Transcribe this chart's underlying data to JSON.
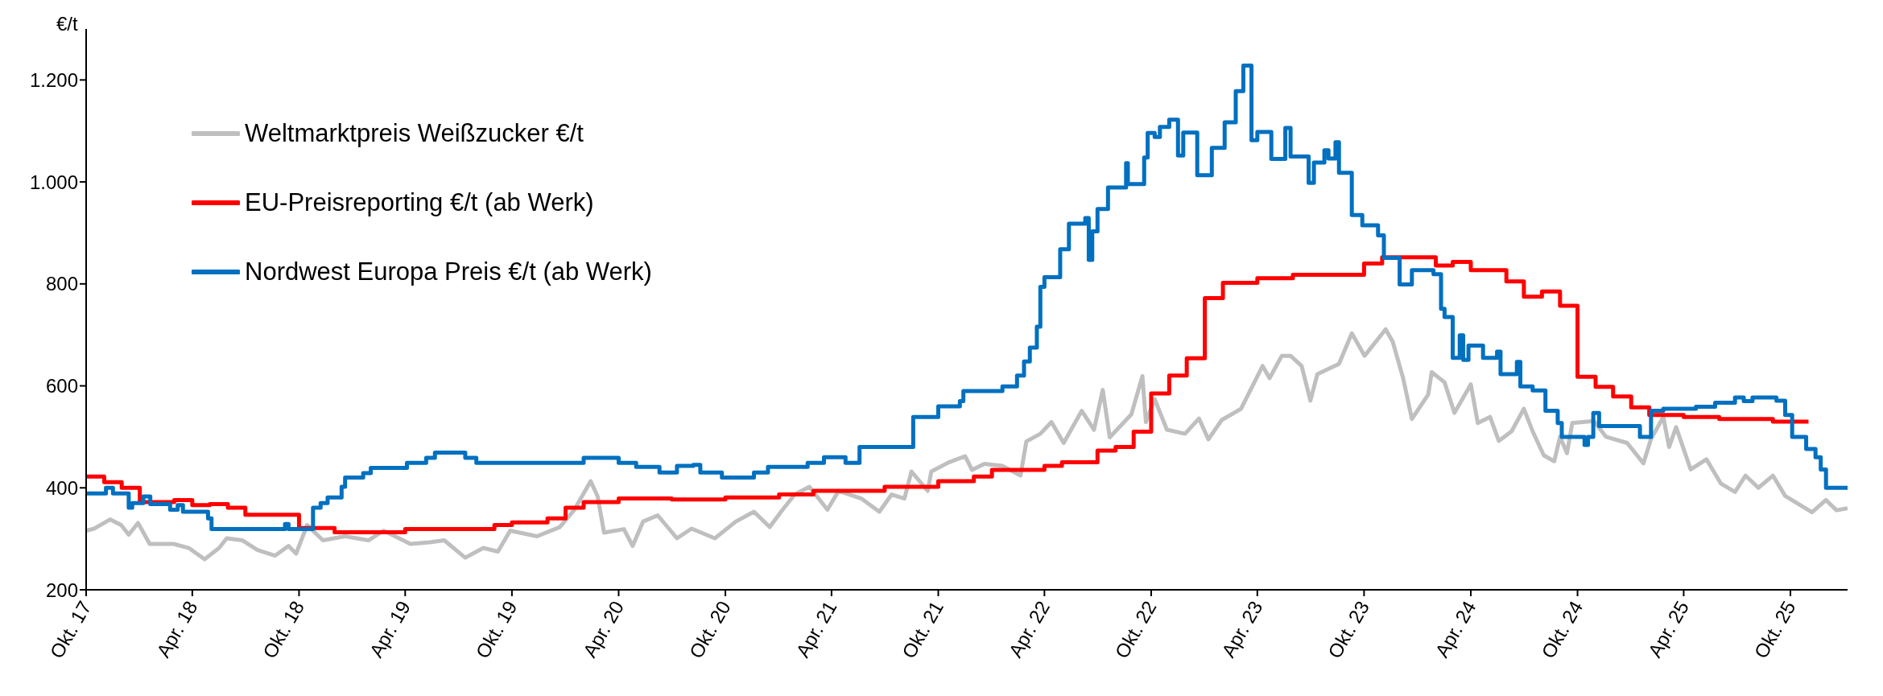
{
  "chart_data": {
    "type": "line",
    "ylabel": "€/t",
    "legend": "top left",
    "grid": false,
    "marker": "none",
    "line_style": "solid",
    "xlim": [
      "2017-10-01",
      "2026-01-07"
    ],
    "xticks": [
      {
        "value": "2017-10-01",
        "label": "Okt. 17"
      },
      {
        "value": "2018-04-01",
        "label": "Apr. 18"
      },
      {
        "value": "2018-10-01",
        "label": "Okt. 18"
      },
      {
        "value": "2019-04-01",
        "label": "Apr. 19"
      },
      {
        "value": "2019-10-01",
        "label": "Okt. 19"
      },
      {
        "value": "2020-04-01",
        "label": "Apr. 20"
      },
      {
        "value": "2020-10-01",
        "label": "Okt. 20"
      },
      {
        "value": "2021-04-01",
        "label": "Apr. 21"
      },
      {
        "value": "2021-10-01",
        "label": "Okt. 21"
      },
      {
        "value": "2022-04-01",
        "label": "Apr. 22"
      },
      {
        "value": "2022-10-01",
        "label": "Okt. 22"
      },
      {
        "value": "2023-04-01",
        "label": "Apr. 23"
      },
      {
        "value": "2023-10-01",
        "label": "Okt. 23"
      },
      {
        "value": "2024-04-01",
        "label": "Apr. 24"
      },
      {
        "value": "2024-10-01",
        "label": "Okt. 24"
      },
      {
        "value": "2025-04-01",
        "label": "Apr. 25"
      },
      {
        "value": "2025-10-01",
        "label": "Okt. 25"
      }
    ],
    "ylim": [
      200,
      1300
    ],
    "yticks": [
      200,
      400,
      600,
      800,
      {
        "value": 1000,
        "label": "1.000"
      },
      {
        "value": 1200,
        "label": "1.200"
      }
    ],
    "series": [
      {
        "name": "Weltmarktpreis Weißzucker €/t",
        "color": "#bfbfbf",
        "type": "line",
        "x": [
          "2017-10-01",
          "2017-10-15",
          "2017-11-11",
          "2017-11-30",
          "2017-12-13",
          "2017-12-29",
          "2018-01-18",
          "2018-02-28",
          "2018-03-26",
          "2018-04-22",
          "2018-05-17",
          "2018-05-30",
          "2018-06-26",
          "2018-07-22",
          "2018-08-21",
          "2018-09-13",
          "2018-09-26",
          "2018-10-15",
          "2018-11-11",
          "2018-12-19",
          "2019-01-28",
          "2019-02-23",
          "2019-04-10",
          "2019-05-13",
          "2019-06-07",
          "2019-07-13",
          "2019-08-13",
          "2019-09-07",
          "2019-09-28",
          "2019-11-13",
          "2019-12-22",
          "2020-01-16",
          "2020-02-13",
          "2020-02-25",
          "2020-03-07",
          "2020-04-10",
          "2020-04-25",
          "2020-05-13",
          "2020-06-07",
          "2020-07-10",
          "2020-08-04",
          "2020-09-13",
          "2020-10-19",
          "2020-11-19",
          "2020-12-16",
          "2021-01-07",
          "2021-01-28",
          "2021-02-22",
          "2021-03-25",
          "2021-04-13",
          "2021-05-22",
          "2021-06-22",
          "2021-07-13",
          "2021-08-04",
          "2021-08-16",
          "2021-09-13",
          "2021-09-19",
          "2021-10-19",
          "2021-11-16",
          "2021-11-28",
          "2021-12-19",
          "2022-01-19",
          "2022-02-19",
          "2022-03-01",
          "2022-03-25",
          "2022-04-13",
          "2022-05-04",
          "2022-06-04",
          "2022-06-25",
          "2022-07-10",
          "2022-07-22",
          "2022-08-28",
          "2022-09-16",
          "2022-09-22",
          "2022-10-07",
          "2022-10-28",
          "2022-11-28",
          "2022-12-22",
          "2023-01-07",
          "2023-01-30",
          "2023-03-04",
          "2023-04-10",
          "2023-04-22",
          "2023-05-13",
          "2023-05-28",
          "2023-06-16",
          "2023-07-01",
          "2023-07-13",
          "2023-08-19",
          "2023-09-10",
          "2023-10-02",
          "2023-11-07",
          "2023-11-19",
          "2023-12-07",
          "2023-12-22",
          "2024-01-19",
          "2024-01-25",
          "2024-02-16",
          "2024-03-04",
          "2024-04-01",
          "2024-04-13",
          "2024-05-04",
          "2024-05-19",
          "2024-06-10",
          "2024-07-01",
          "2024-07-16",
          "2024-08-04",
          "2024-08-22",
          "2024-09-01",
          "2024-09-13",
          "2024-09-22",
          "2024-10-29",
          "2024-11-19",
          "2024-12-25",
          "2025-01-22",
          "2025-02-04",
          "2025-02-25",
          "2025-03-07",
          "2025-03-19",
          "2025-04-13",
          "2025-05-10",
          "2025-06-04",
          "2025-06-28",
          "2025-07-16",
          "2025-08-07",
          "2025-09-01",
          "2025-09-22",
          "2025-11-07",
          "2025-12-01",
          "2025-12-19",
          "2026-01-07"
        ],
        "values": [
          316,
          320,
          338,
          327,
          308,
          331,
          290,
          290,
          282,
          260,
          282,
          301,
          297,
          278,
          267,
          286,
          271,
          327,
          297,
          305,
          297,
          316,
          290,
          293,
          297,
          263,
          282,
          275,
          316,
          305,
          323,
          357,
          413,
          383,
          312,
          319,
          286,
          334,
          346,
          301,
          320,
          301,
          334,
          353,
          323,
          357,
          387,
          402,
          357,
          394,
          379,
          353,
          387,
          379,
          432,
          394,
          432,
          450,
          462,
          435,
          447,
          443,
          424,
          491,
          506,
          529,
          488,
          551,
          514,
          592,
          499,
          544,
          619,
          529,
          574,
          514,
          506,
          536,
          495,
          533,
          555,
          639,
          615,
          659,
          659,
          639,
          571,
          623,
          643,
          703,
          659,
          711,
          687,
          615,
          535,
          583,
          627,
          607,
          547,
          603,
          527,
          539,
          492,
          511,
          555,
          511,
          464,
          452,
          500,
          468,
          527,
          531,
          500,
          488,
          448,
          496,
          539,
          480,
          519,
          436,
          456,
          408,
          392,
          424,
          400,
          424,
          384,
          352,
          376,
          356,
          360
        ]
      },
      {
        "name": "EU-Preisreporting €/t (ab Werk)",
        "color": "#ff0000",
        "type": "step",
        "x": [
          "2017-10-01",
          "2017-11-01",
          "2017-12-01",
          "2018-01-01",
          "2018-03-01",
          "2018-04-01",
          "2018-05-01",
          "2018-06-01",
          "2018-07-01",
          "2018-10-01",
          "2018-12-01",
          "2019-04-01",
          "2019-09-01",
          "2019-10-01",
          "2019-12-01",
          "2020-01-01",
          "2020-02-01",
          "2020-04-01",
          "2020-07-01",
          "2020-10-01",
          "2021-01-01",
          "2021-03-01",
          "2021-07-01",
          "2021-10-01",
          "2021-12-01",
          "2022-01-01",
          "2022-04-01",
          "2022-05-01",
          "2022-07-01",
          "2022-08-01",
          "2022-09-01",
          "2022-10-01",
          "2022-11-01",
          "2022-12-01",
          "2023-01-01",
          "2023-02-01",
          "2023-04-01",
          "2023-06-01",
          "2023-10-01",
          "2023-11-01",
          "2024-02-01",
          "2024-03-01",
          "2024-04-01",
          "2024-06-01",
          "2024-07-01",
          "2024-08-01",
          "2024-09-01",
          "2024-10-01",
          "2024-11-01",
          "2024-12-01",
          "2025-01-01",
          "2025-02-01",
          "2025-04-01",
          "2025-06-01",
          "2025-09-01",
          "2025-11-01"
        ],
        "values": [
          422,
          411,
          400,
          372,
          376,
          366,
          368,
          361,
          347,
          321,
          313,
          319,
          327,
          332,
          340,
          361,
          372,
          379,
          377,
          381,
          387,
          394,
          402,
          413,
          422,
          435,
          443,
          450,
          473,
          480,
          510,
          585,
          620,
          654,
          772,
          802,
          811,
          818,
          840,
          852,
          836,
          843,
          827,
          805,
          775,
          785,
          757,
          618,
          598,
          579,
          558,
          543,
          539,
          535,
          530,
          530
        ]
      },
      {
        "name": "Nordwest Europa Preis €/t (ab Werk)",
        "color": "#0070c0",
        "type": "step",
        "x": [
          "2017-10-01",
          "2017-11-04",
          "2017-11-16",
          "2017-12-13",
          "2017-12-19",
          "2018-01-07",
          "2018-01-19",
          "2018-02-22",
          "2018-03-07",
          "2018-03-16",
          "2018-04-28",
          "2018-05-04",
          "2018-09-07",
          "2018-09-13",
          "2018-10-25",
          "2018-11-07",
          "2018-11-19",
          "2018-12-13",
          "2018-12-19",
          "2019-01-19",
          "2019-02-01",
          "2019-04-04",
          "2019-05-07",
          "2019-05-22",
          "2019-07-13",
          "2019-08-01",
          "2020-02-01",
          "2020-04-01",
          "2020-05-01",
          "2020-06-10",
          "2020-07-10",
          "2020-08-07",
          "2020-08-19",
          "2020-09-25",
          "2020-11-19",
          "2020-12-13",
          "2021-02-19",
          "2021-03-19",
          "2021-04-25",
          "2021-05-19",
          "2021-08-19",
          "2021-10-01",
          "2021-11-07",
          "2021-11-13",
          "2022-01-19",
          "2022-02-13",
          "2022-02-25",
          "2022-03-07",
          "2022-03-19",
          "2022-03-25",
          "2022-04-01",
          "2022-04-28",
          "2022-05-13",
          "2022-06-10",
          "2022-06-16",
          "2022-06-22",
          "2022-07-01",
          "2022-07-19",
          "2022-08-19",
          "2022-08-22",
          "2022-09-19",
          "2022-09-25",
          "2022-10-07",
          "2022-10-16",
          "2022-11-01",
          "2022-11-16",
          "2022-11-25",
          "2022-12-19",
          "2023-01-13",
          "2023-02-04",
          "2023-02-23",
          "2023-03-08",
          "2023-03-22",
          "2023-04-01",
          "2023-04-25",
          "2023-05-19",
          "2023-05-28",
          "2023-06-28",
          "2023-07-07",
          "2023-07-25",
          "2023-08-01",
          "2023-08-13",
          "2023-08-19",
          "2023-09-10",
          "2023-09-28",
          "2023-10-25",
          "2023-11-04",
          "2023-12-01",
          "2023-12-22",
          "2024-01-28",
          "2024-02-10",
          "2024-02-16",
          "2024-03-01",
          "2024-03-13",
          "2024-03-19",
          "2024-03-28",
          "2024-04-22",
          "2024-05-16",
          "2024-05-22",
          "2024-06-19",
          "2024-06-25",
          "2024-07-16",
          "2024-08-07",
          "2024-08-28",
          "2024-09-04",
          "2024-10-13",
          "2024-10-19",
          "2024-10-28",
          "2024-11-07",
          "2025-01-16",
          "2025-02-04",
          "2025-02-25",
          "2025-04-22",
          "2025-05-25",
          "2025-06-28",
          "2025-07-13",
          "2025-07-28",
          "2025-09-07",
          "2025-09-22",
          "2025-10-04",
          "2025-10-28",
          "2025-11-13",
          "2025-11-22",
          "2025-12-01",
          "2026-01-07"
        ],
        "values": [
          389,
          400,
          389,
          361,
          370,
          383,
          368,
          357,
          366,
          353,
          340,
          319,
          329,
          319,
          361,
          370,
          381,
          402,
          420,
          429,
          439,
          449,
          459,
          469,
          459,
          449,
          459,
          449,
          441,
          430,
          443,
          445,
          430,
          420,
          430,
          441,
          449,
          460,
          449,
          480,
          539,
          560,
          570,
          590,
          599,
          620,
          648,
          675,
          716,
          794,
          813,
          868,
          918,
          929,
          847,
          903,
          947,
          989,
          1037,
          996,
          1048,
          1096,
          1088,
          1108,
          1122,
          1052,
          1097,
          1013,
          1067,
          1117,
          1178,
          1228,
          1082,
          1098,
          1045,
          1106,
          1050,
          998,
          1038,
          1062,
          1046,
          1078,
          1018,
          935,
          915,
          895,
          851,
          799,
          827,
          819,
          751,
          735,
          655,
          699,
          651,
          679,
          655,
          667,
          623,
          647,
          599,
          591,
          551,
          527,
          500,
          484,
          500,
          547,
          521,
          500,
          551,
          555,
          559,
          567,
          577,
          570,
          577,
          571,
          543,
          500,
          476,
          460,
          436,
          400,
          400
        ]
      }
    ]
  }
}
